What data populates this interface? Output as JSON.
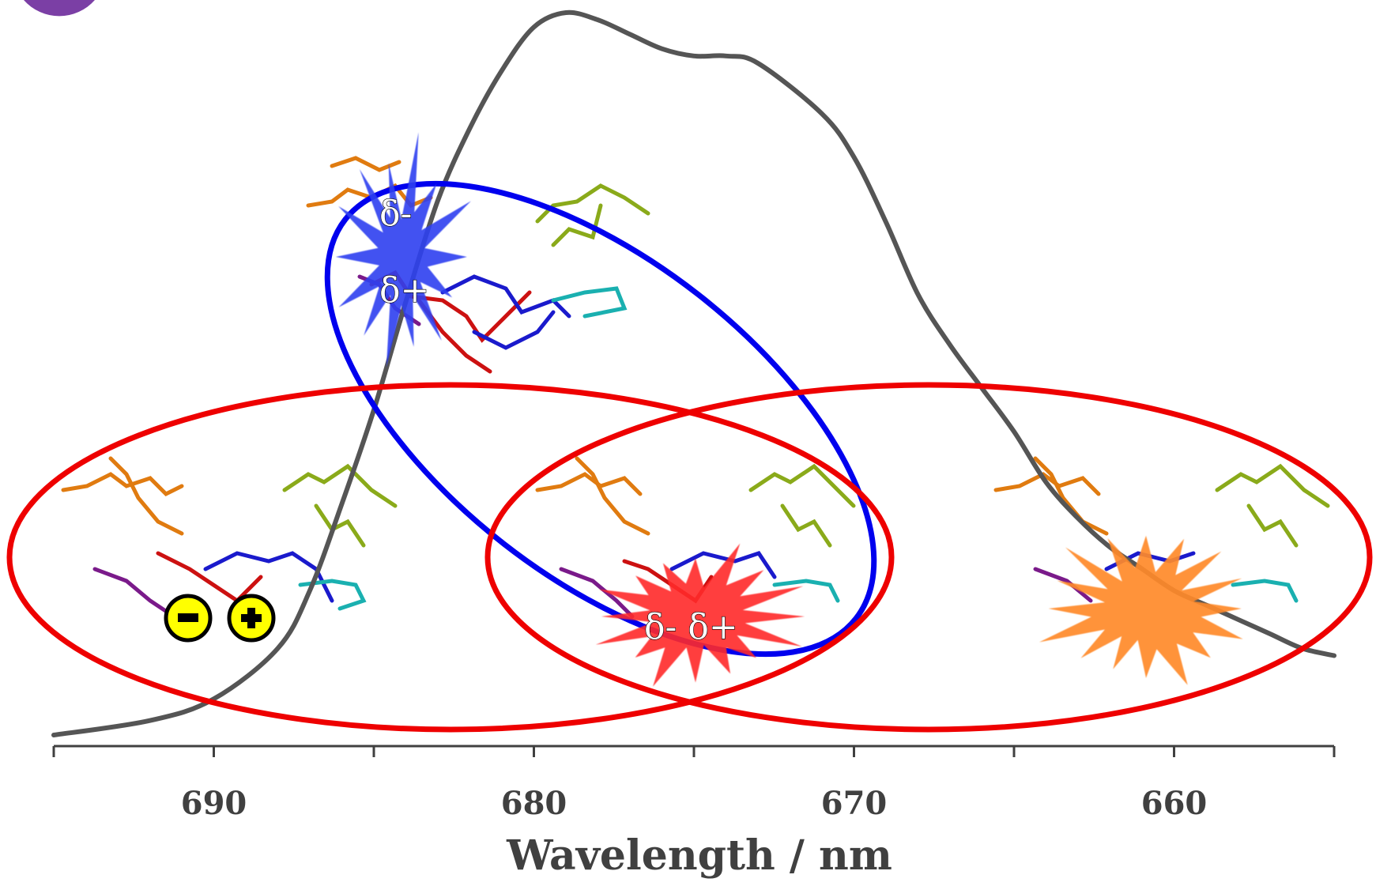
{
  "chart_data": {
    "type": "line",
    "xlabel": "Wavelength / nm",
    "ylabel": "",
    "xlim": [
      695,
      655
    ],
    "x_reversed": true,
    "ylim": [
      0,
      1
    ],
    "x_ticks": [
      690,
      680,
      670,
      660
    ],
    "minor_tick_step": 5,
    "series": [
      {
        "color": "#555555",
        "points": [
          [
            695,
            0.0
          ],
          [
            692,
            0.02
          ],
          [
            690,
            0.05
          ],
          [
            688,
            0.12
          ],
          [
            687,
            0.2
          ],
          [
            686,
            0.32
          ],
          [
            685,
            0.45
          ],
          [
            684,
            0.6
          ],
          [
            683,
            0.74
          ],
          [
            682,
            0.84
          ],
          [
            681,
            0.92
          ],
          [
            680,
            0.98
          ],
          [
            679,
            1.0
          ],
          [
            678,
            0.99
          ],
          [
            677,
            0.97
          ],
          [
            676,
            0.95
          ],
          [
            675,
            0.94
          ],
          [
            674,
            0.94
          ],
          [
            673,
            0.93
          ],
          [
            671,
            0.86
          ],
          [
            670,
            0.8
          ],
          [
            669,
            0.71
          ],
          [
            668,
            0.61
          ],
          [
            667,
            0.54
          ],
          [
            666,
            0.48
          ],
          [
            665,
            0.42
          ],
          [
            664,
            0.35
          ],
          [
            663,
            0.3
          ],
          [
            662,
            0.26
          ],
          [
            661,
            0.23
          ],
          [
            660,
            0.2
          ],
          [
            659,
            0.18
          ],
          [
            658,
            0.16
          ],
          [
            657,
            0.14
          ],
          [
            656,
            0.12
          ],
          [
            655,
            0.11
          ]
        ]
      }
    ],
    "annotations": {
      "blue_label_top": "δ-",
      "blue_label_bottom": "δ+",
      "red_label": "δ- δ+",
      "minus_sign": "-",
      "plus_sign": "+"
    },
    "colors": {
      "blue_ellipse": "#0000ee",
      "red_ellipse": "#ee0000",
      "blue_star": "#2e3ff0",
      "red_star": "#ff2a2a",
      "orange_star": "#ff8a2a",
      "charge_fill": "#ffff00",
      "axis": "#404040"
    }
  }
}
